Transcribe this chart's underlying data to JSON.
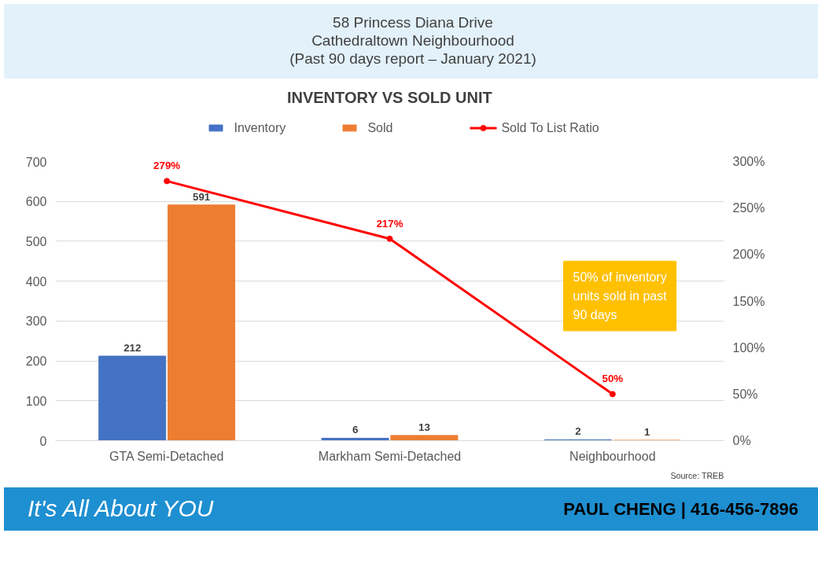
{
  "chart_data": {
    "type": "bar",
    "title": "INVENTORY VS SOLD UNIT",
    "subtitle": "58 Princess Diana Drive\nCathedraltown Neighbourhood\n(Past 90 days report – January 2021)",
    "categories": [
      "GTA Semi-Detached",
      "Markham Semi-Detached",
      "Neighbourhood"
    ],
    "series": [
      {
        "name": "Inventory",
        "color": "#4472c4",
        "values": [
          212,
          6,
          2
        ],
        "value_labels": [
          "212",
          "6",
          "2"
        ]
      },
      {
        "name": "Sold",
        "color": "#ed7d31",
        "values": [
          591,
          13,
          1
        ],
        "value_labels": [
          "591",
          "13",
          "1"
        ]
      },
      {
        "name": "Sold To List Ratio",
        "type": "line",
        "axis": "y2",
        "color": "#ff0000",
        "values": [
          279,
          217,
          50
        ],
        "value_labels": [
          "279%",
          "217%",
          "50%"
        ]
      }
    ],
    "ylim": [
      0,
      700
    ],
    "yticks": [
      0,
      100,
      200,
      300,
      400,
      500,
      600,
      700
    ],
    "y2lim": [
      0,
      300
    ],
    "y2ticks": [
      {
        "value": 0,
        "label": "0%"
      },
      {
        "value": 50,
        "label": "50%"
      },
      {
        "value": 100,
        "label": "100%"
      },
      {
        "value": 150,
        "label": "150%"
      },
      {
        "value": 200,
        "label": "200%"
      },
      {
        "value": 250,
        "label": "250%"
      },
      {
        "value": 300,
        "label": "300%"
      }
    ],
    "grid": "y",
    "legend": "top",
    "marker": "circle",
    "line_style": "solid",
    "annotations": [
      "50% of inventory units sold in past 90 days",
      "Source: TREB",
      "It's All About YOU",
      "PAUL CHENG | 416-456-7896"
    ]
  }
}
